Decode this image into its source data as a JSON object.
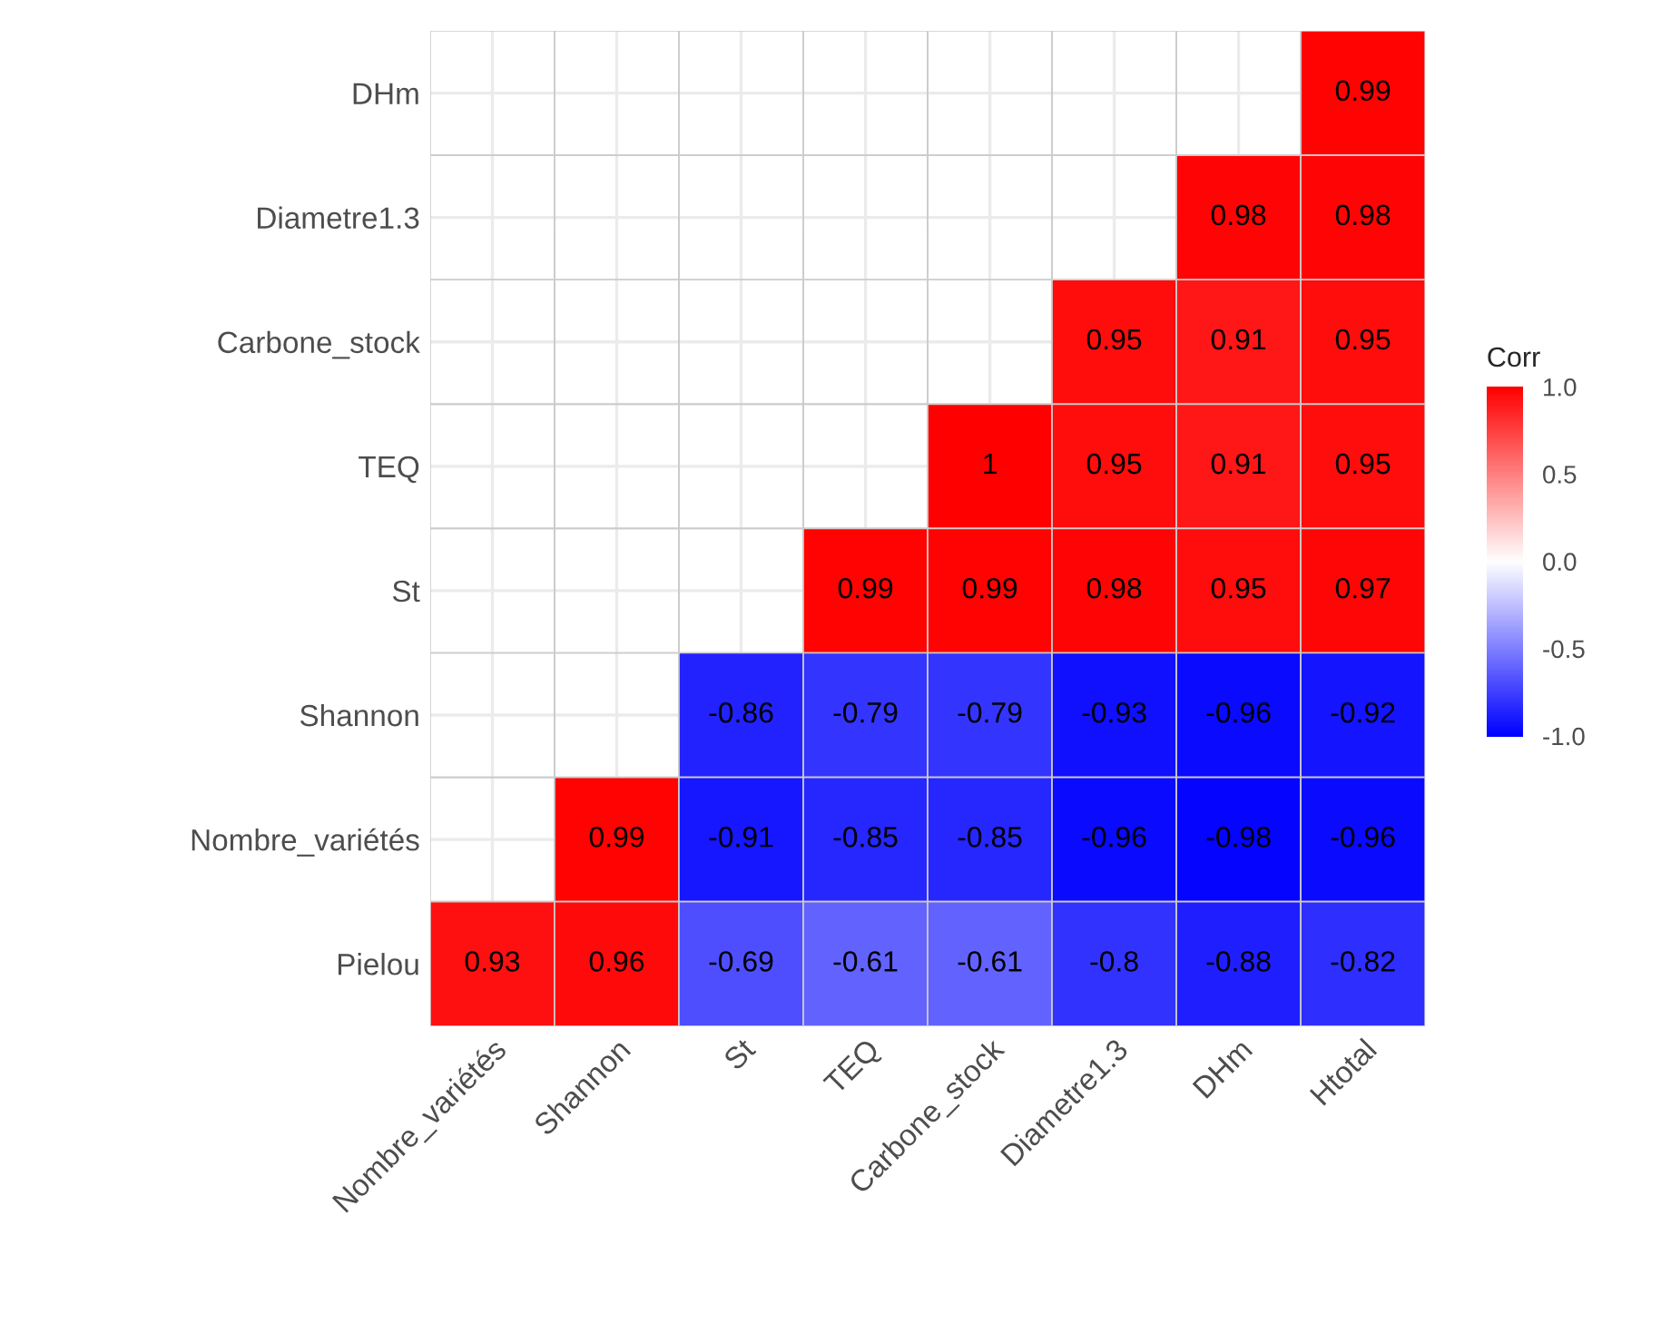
{
  "chart_data": {
    "type": "heatmap",
    "categories": [
      "Nombre_variétés",
      "Shannon",
      "St",
      "TEQ",
      "Carbone_stock",
      "Diametre1.3",
      "DHm",
      "Htotal"
    ],
    "y_categories": [
      "DHm",
      "Diametre1.3",
      "Carbone_stock",
      "TEQ",
      "St",
      "Shannon",
      "Nombre_variétés",
      "Pielou"
    ],
    "cells": [
      [
        null,
        null,
        null,
        null,
        null,
        null,
        null,
        0.99
      ],
      [
        null,
        null,
        null,
        null,
        null,
        null,
        0.98,
        0.98
      ],
      [
        null,
        null,
        null,
        null,
        null,
        0.95,
        0.91,
        0.95
      ],
      [
        null,
        null,
        null,
        null,
        1,
        0.95,
        0.91,
        0.95
      ],
      [
        null,
        null,
        null,
        0.99,
        0.99,
        0.98,
        0.95,
        0.97
      ],
      [
        null,
        null,
        -0.86,
        -0.79,
        -0.79,
        -0.93,
        -0.96,
        -0.92
      ],
      [
        null,
        0.99,
        -0.91,
        -0.85,
        -0.85,
        -0.96,
        -0.98,
        -0.96
      ],
      [
        0.93,
        0.96,
        -0.69,
        -0.61,
        -0.61,
        -0.8,
        -0.88,
        -0.82
      ]
    ],
    "data_labels": true,
    "clabel": "Corr",
    "clim": [
      -1,
      1
    ],
    "cticks": [
      {
        "value": 1,
        "label": "1.0"
      },
      {
        "value": 0.5,
        "label": "0.5"
      },
      {
        "value": 0,
        "label": "0.0"
      },
      {
        "value": -0.5,
        "label": "-0.5"
      },
      {
        "value": -1,
        "label": "-1.0"
      }
    ],
    "colors": [
      "#0000ff",
      "#ffffff",
      "#ff0000"
    ],
    "grid": true
  }
}
